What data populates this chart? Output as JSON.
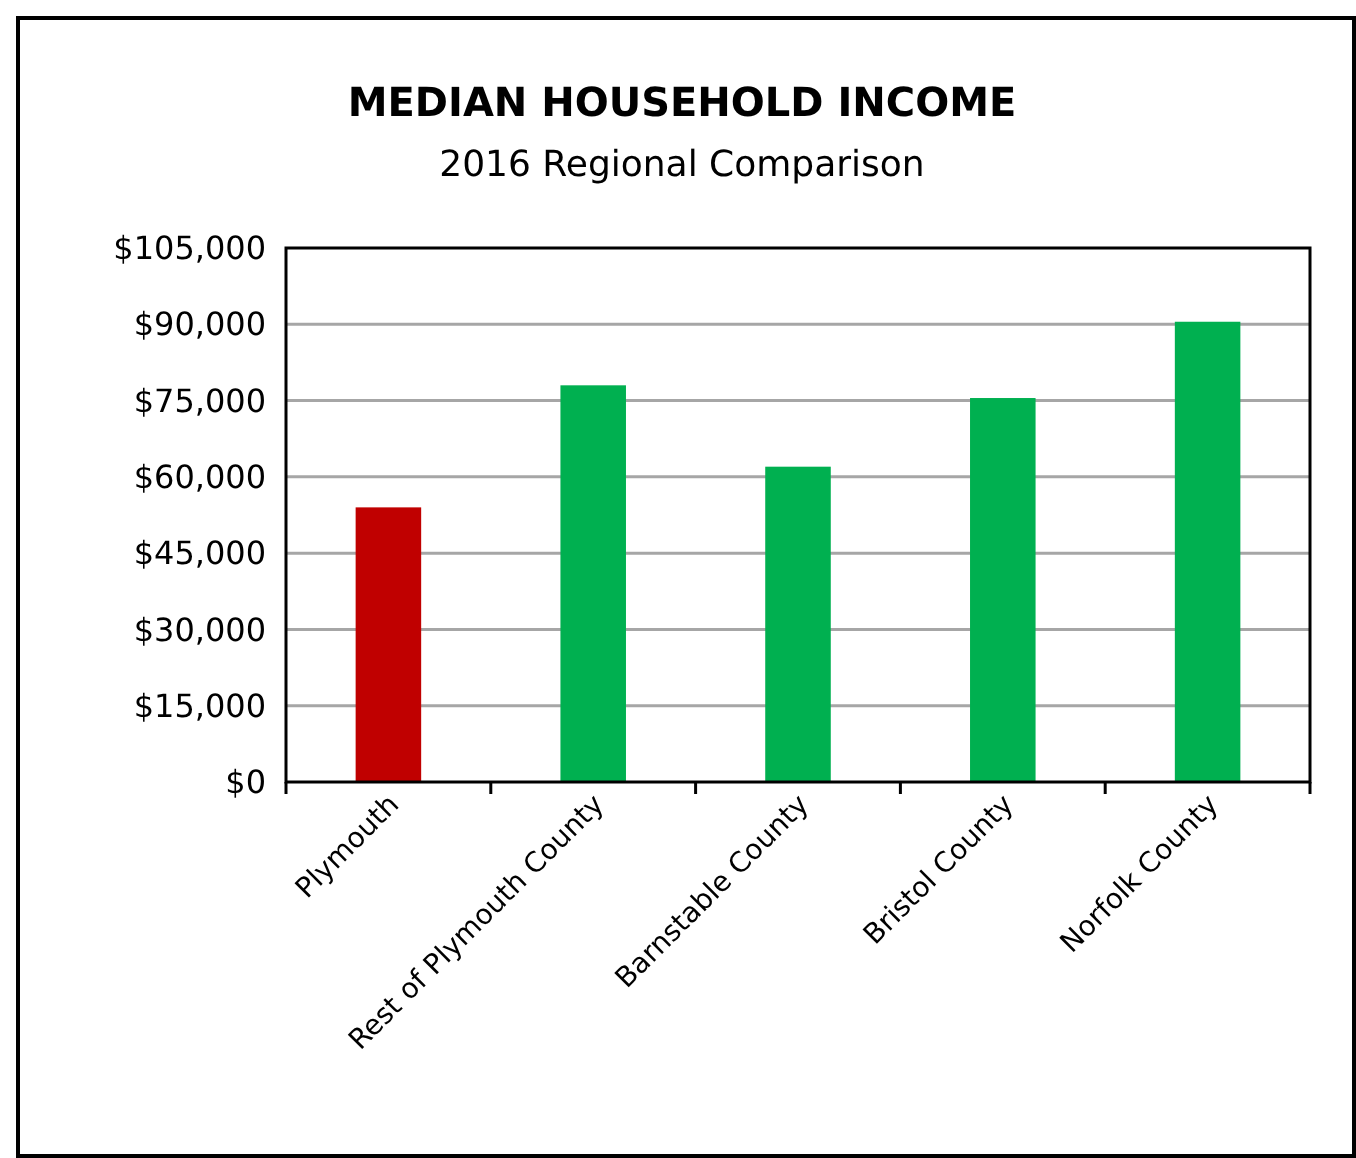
{
  "chart_data": {
    "type": "bar",
    "title": "MEDIAN HOUSEHOLD INCOME",
    "subtitle": "2016 Regional Comparison",
    "categories": [
      "Plymouth",
      "Rest of Plymouth County",
      "Barnstable County",
      "Bristol County",
      "Norfolk County"
    ],
    "values": [
      54000,
      78000,
      62000,
      75500,
      90500
    ],
    "colors": [
      "#c00000",
      "#00b050",
      "#00b050",
      "#00b050",
      "#00b050"
    ],
    "ylim": [
      0,
      105000
    ],
    "yticks": [
      {
        "value": 0,
        "label": "$0"
      },
      {
        "value": 15000,
        "label": "$15,000"
      },
      {
        "value": 30000,
        "label": "$30,000"
      },
      {
        "value": 45000,
        "label": "$45,000"
      },
      {
        "value": 60000,
        "label": "$60,000"
      },
      {
        "value": 75000,
        "label": "$75,000"
      },
      {
        "value": 90000,
        "label": "$90,000"
      },
      {
        "value": 105000,
        "label": "$105,000"
      }
    ],
    "grid": "y"
  }
}
